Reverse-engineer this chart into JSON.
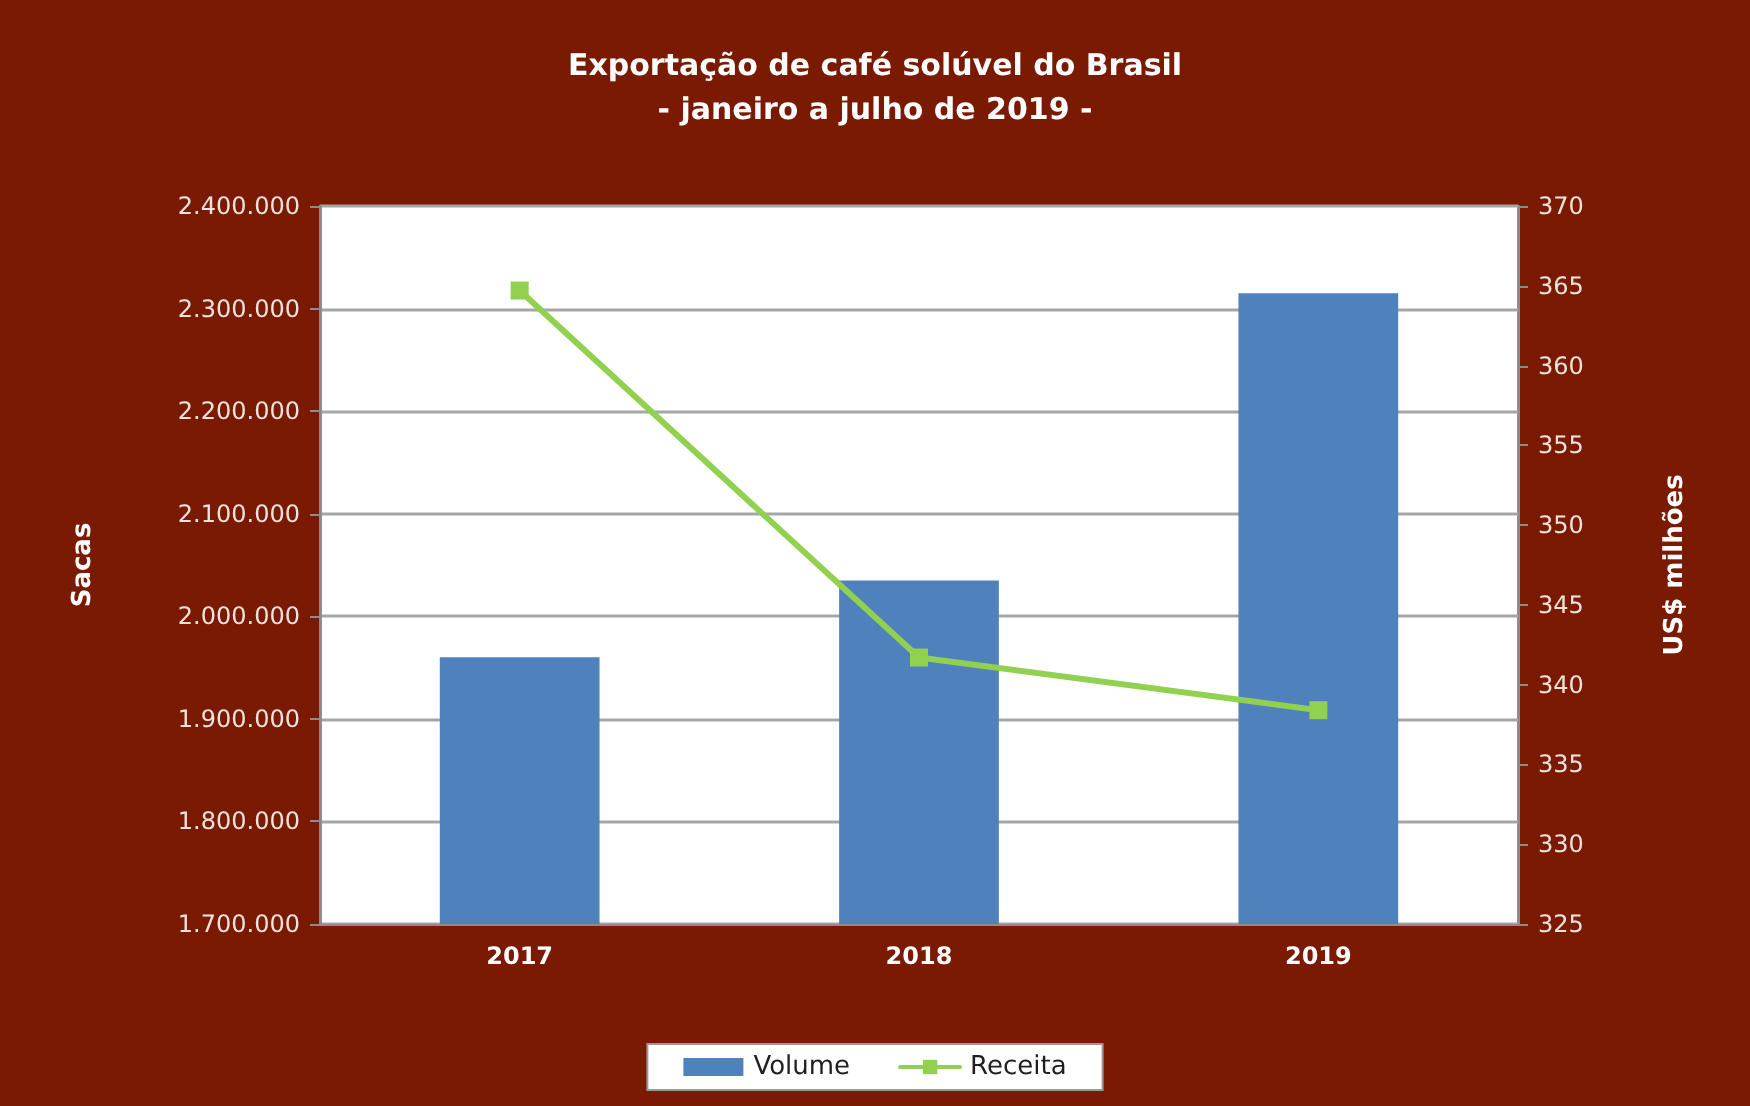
{
  "chart_data": {
    "type": "bar",
    "title": "Exportação de café solúvel do Brasil",
    "subtitle": "- janeiro a julho de 2019 -",
    "ylabel": "Sacas",
    "y2label": "US$ milhões",
    "categories": [
      "2017",
      "2018",
      "2019"
    ],
    "series": [
      {
        "name": "Volume",
        "color": "#4f81bd",
        "values": [
          1960000,
          2035000,
          2315000
        ]
      },
      {
        "name": "Receita",
        "type": "line",
        "axis": "y2",
        "color": "#92d050",
        "values": [
          364.7,
          341.7,
          338.4
        ]
      }
    ],
    "ylim": [
      1700000,
      2400000
    ],
    "yticks": [
      {
        "value": 1700000,
        "label": "1.700.000"
      },
      {
        "value": 1800000,
        "label": "1.800.000"
      },
      {
        "value": 1900000,
        "label": "1.900.000"
      },
      {
        "value": 2000000,
        "label": "2.000.000"
      },
      {
        "value": 2100000,
        "label": "2.100.000"
      },
      {
        "value": 2200000,
        "label": "2.200.000"
      },
      {
        "value": 2300000,
        "label": "2.300.000"
      },
      {
        "value": 2400000,
        "label": "2.400.000"
      }
    ],
    "y2lim": [
      325,
      370
    ],
    "y2ticks": [
      325,
      330,
      335,
      340,
      345,
      350,
      355,
      360,
      365,
      370
    ],
    "grid": "y",
    "legend": "bottom",
    "marker": "square"
  }
}
